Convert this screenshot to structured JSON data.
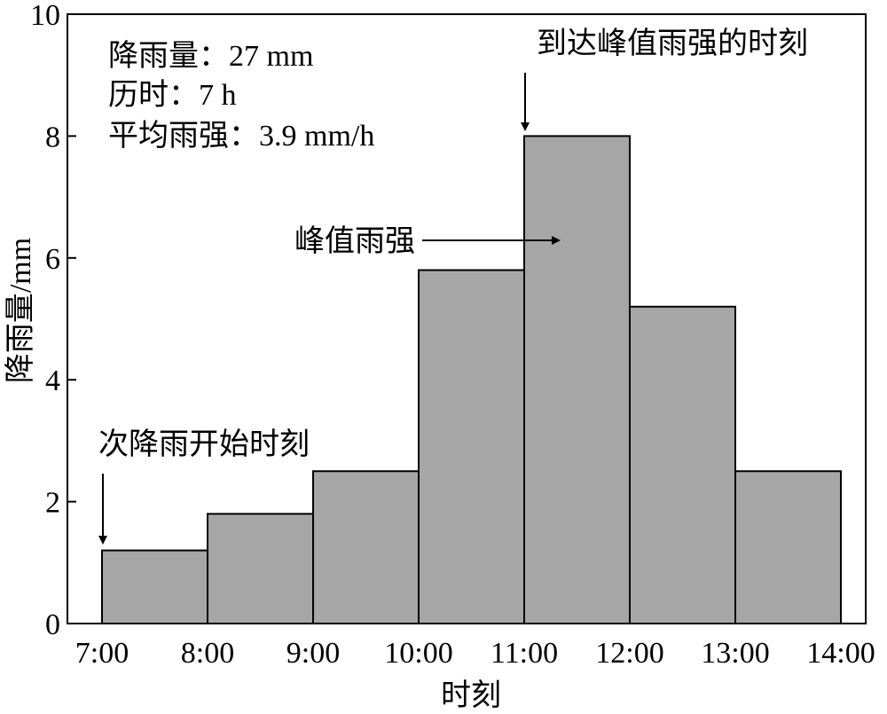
{
  "chart_data": {
    "type": "bar",
    "title": "",
    "xlabel": "时刻",
    "ylabel": "降雨量/mm",
    "xlim": [
      "7:00",
      "14:00"
    ],
    "ylim": [
      0,
      10
    ],
    "grid": false,
    "x_ticks": [
      "7:00",
      "8:00",
      "9:00",
      "10:00",
      "11:00",
      "12:00",
      "13:00",
      "14:00"
    ],
    "y_ticks": [
      0,
      2,
      4,
      6,
      8,
      10
    ],
    "bars": [
      {
        "start": "7:00",
        "end": "8:00",
        "value": 1.2
      },
      {
        "start": "8:00",
        "end": "9:00",
        "value": 1.8
      },
      {
        "start": "9:00",
        "end": "10:00",
        "value": 2.5
      },
      {
        "start": "10:00",
        "end": "11:00",
        "value": 5.8
      },
      {
        "start": "11:00",
        "end": "12:00",
        "value": 8.0
      },
      {
        "start": "12:00",
        "end": "13:00",
        "value": 5.2
      },
      {
        "start": "13:00",
        "end": "14:00",
        "value": 2.5
      }
    ],
    "bar_color": "#a6a6a6",
    "summary_lines": [
      "降雨量：27 mm",
      "历时：7 h",
      "平均雨强：3.9 mm/h"
    ],
    "annotations": {
      "peak_time": "到达峰值雨强的时刻",
      "peak_intensity": "峰值雨强",
      "start_time": "次降雨开始时刻"
    }
  }
}
